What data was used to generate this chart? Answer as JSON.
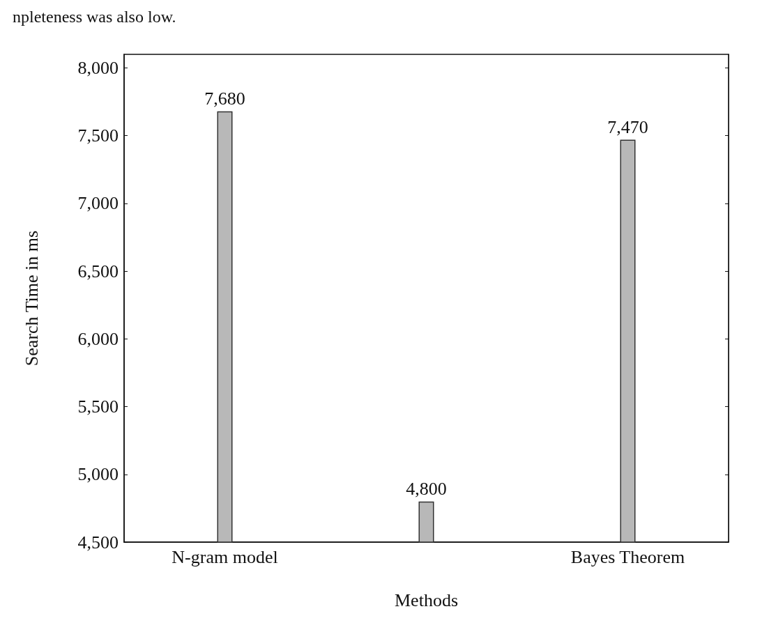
{
  "chart_data": {
    "type": "bar",
    "categories": [
      "N-gram model",
      null,
      "Bayes Theorem"
    ],
    "values": [
      7680,
      4800,
      7470
    ],
    "value_labels": [
      "7,680",
      "4,800",
      "7,470"
    ],
    "color": "#b8b8b8",
    "xlabel": "Methods",
    "ylabel": "Search Time in ms",
    "ylim": [
      4500,
      8100
    ],
    "yticks": [
      {
        "value": 4500,
        "label": "4,500"
      },
      {
        "value": 5000,
        "label": "5,000"
      },
      {
        "value": 5500,
        "label": "5,500"
      },
      {
        "value": 6000,
        "label": "6,000"
      },
      {
        "value": 6500,
        "label": "6,500"
      },
      {
        "value": 7000,
        "label": "7,000"
      },
      {
        "value": 7500,
        "label": "7,500"
      },
      {
        "value": 8000,
        "label": "8,000"
      }
    ],
    "annotations": [
      "npleteness was also low."
    ],
    "grid": false
  }
}
